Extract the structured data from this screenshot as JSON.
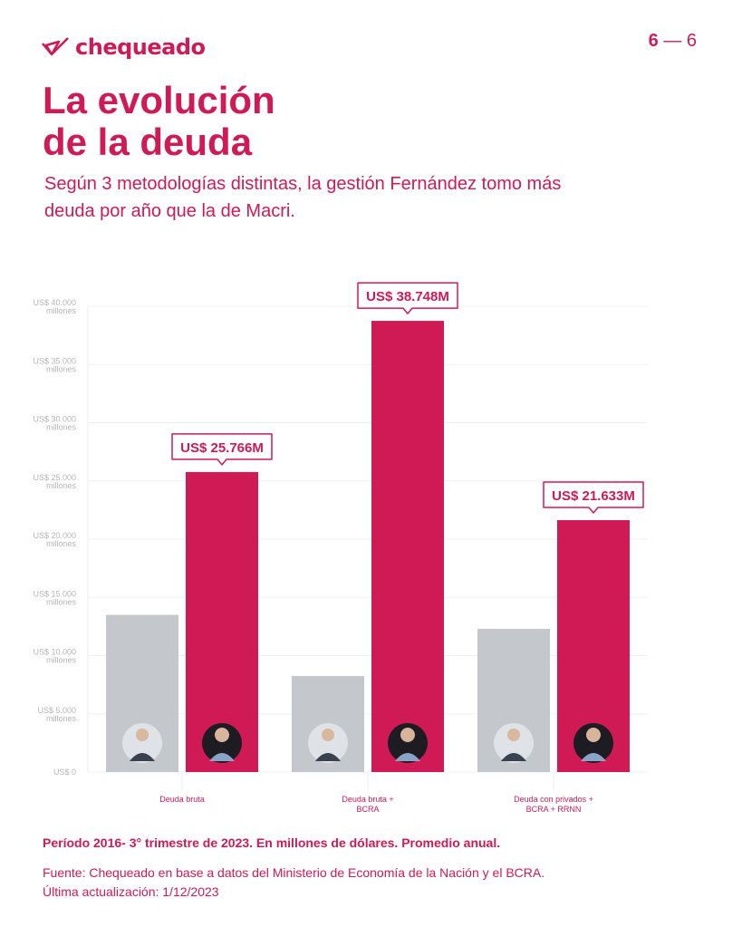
{
  "header": {
    "brand": "chequeado",
    "page_current": "6",
    "page_sep": "—",
    "page_total": "6"
  },
  "title_line1": "La evolución",
  "title_line2": "de la deuda",
  "subtitle": "Según 3 metodologías distintas, la gestión Fernández tomo más deuda por año que la de Macri.",
  "colors": {
    "accent": "#cf1a55",
    "gray": "#c4c7cb"
  },
  "chart_data": {
    "type": "bar",
    "categories": [
      "Deuda bruta",
      "Deuda bruta + BCRA",
      "Deuda con privados + BCRA + RRNN"
    ],
    "category_lines": [
      [
        "Deuda bruta"
      ],
      [
        "Deuda bruta +",
        "BCRA"
      ],
      [
        "Deuda con privados +",
        "BCRA + RRNN"
      ]
    ],
    "series": [
      {
        "name": "Macri",
        "values": [
          13500,
          8250,
          12300
        ]
      },
      {
        "name": "Fernández",
        "values": [
          25766,
          38748,
          21633
        ]
      }
    ],
    "data_labels": [
      "US$ 25.766M",
      "US$ 38.748M",
      "US$ 21.633M"
    ],
    "ylim": [
      0,
      40000
    ],
    "yticks": [
      0,
      5000,
      10000,
      15000,
      20000,
      25000,
      30000,
      35000,
      40000
    ],
    "ytick_labels": [
      "US$ 0",
      "US$ 5.000",
      "US$ 10.000",
      "US$ 15.000",
      "US$ 20.000",
      "US$ 25.000",
      "US$ 30.000",
      "US$ 35.000",
      "US$ 40.000"
    ],
    "ytick_unit": "millones",
    "grid": true
  },
  "footer": {
    "period": "Período 2016- 3° trimestre de 2023. En millones de dólares. Promedio anual.",
    "source": "Fuente: Chequeado en base a datos del Ministerio de Economía de la Nación y el BCRA.",
    "updated": "Última actualización: 1/12/2023"
  }
}
